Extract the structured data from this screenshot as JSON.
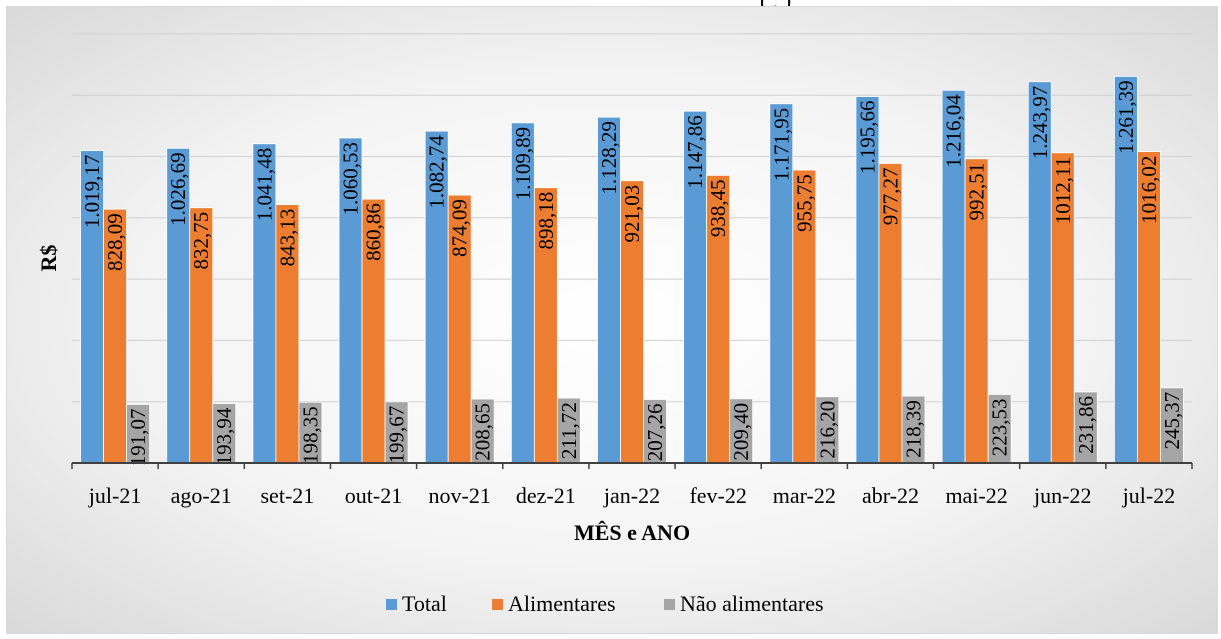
{
  "page": {
    "title_fragment": "(   ,  )"
  },
  "chart_data": {
    "type": "bar",
    "title": "",
    "xlabel": "MÊS e ANO",
    "ylabel": "R$",
    "ylim": [
      0,
      1400
    ],
    "y_grid_step": 200,
    "grid": true,
    "legend_position": "bottom",
    "categories": [
      "jul-21",
      "ago-21",
      "set-21",
      "out-21",
      "nov-21",
      "dez-21",
      "jan-22",
      "fev-22",
      "mar-22",
      "abr-22",
      "mai-22",
      "jun-22",
      "jul-22"
    ],
    "series": [
      {
        "name": "Total",
        "color": "#5b9bd5",
        "values": [
          1019.17,
          1026.69,
          1041.48,
          1060.53,
          1082.74,
          1109.89,
          1128.29,
          1147.86,
          1171.95,
          1195.66,
          1216.04,
          1243.97,
          1261.39
        ],
        "labels": [
          "1.019,17",
          "1.026,69",
          "1.041,48",
          "1.060,53",
          "1.082,74",
          "1.109,89",
          "1.128,29",
          "1.147,86",
          "1.171,95",
          "1.195,66",
          "1.216,04",
          "1.243,97",
          "1.261,39"
        ]
      },
      {
        "name": "Alimentares",
        "color": "#ed7d31",
        "values": [
          828.09,
          832.75,
          843.13,
          860.86,
          874.09,
          898.18,
          921.03,
          938.45,
          955.75,
          977.27,
          992.51,
          1012.11,
          1016.02
        ],
        "labels": [
          "828,09",
          "832,75",
          "843,13",
          "860,86",
          "874,09",
          "898,18",
          "921,03",
          "938,45",
          "955,75",
          "977,27",
          "992,51",
          "1012,11",
          "1016,02"
        ]
      },
      {
        "name": "Não alimentares",
        "color": "#a5a5a5",
        "values": [
          191.07,
          193.94,
          198.35,
          199.67,
          208.65,
          211.72,
          207.26,
          209.4,
          216.2,
          218.39,
          223.53,
          231.86,
          245.37
        ],
        "labels": [
          "191,07",
          "193,94",
          "198,35",
          "199,67",
          "208,65",
          "211,72",
          "207,26",
          "209,40",
          "216,20",
          "218,39",
          "223,53",
          "231,86",
          "245,37"
        ]
      }
    ]
  }
}
